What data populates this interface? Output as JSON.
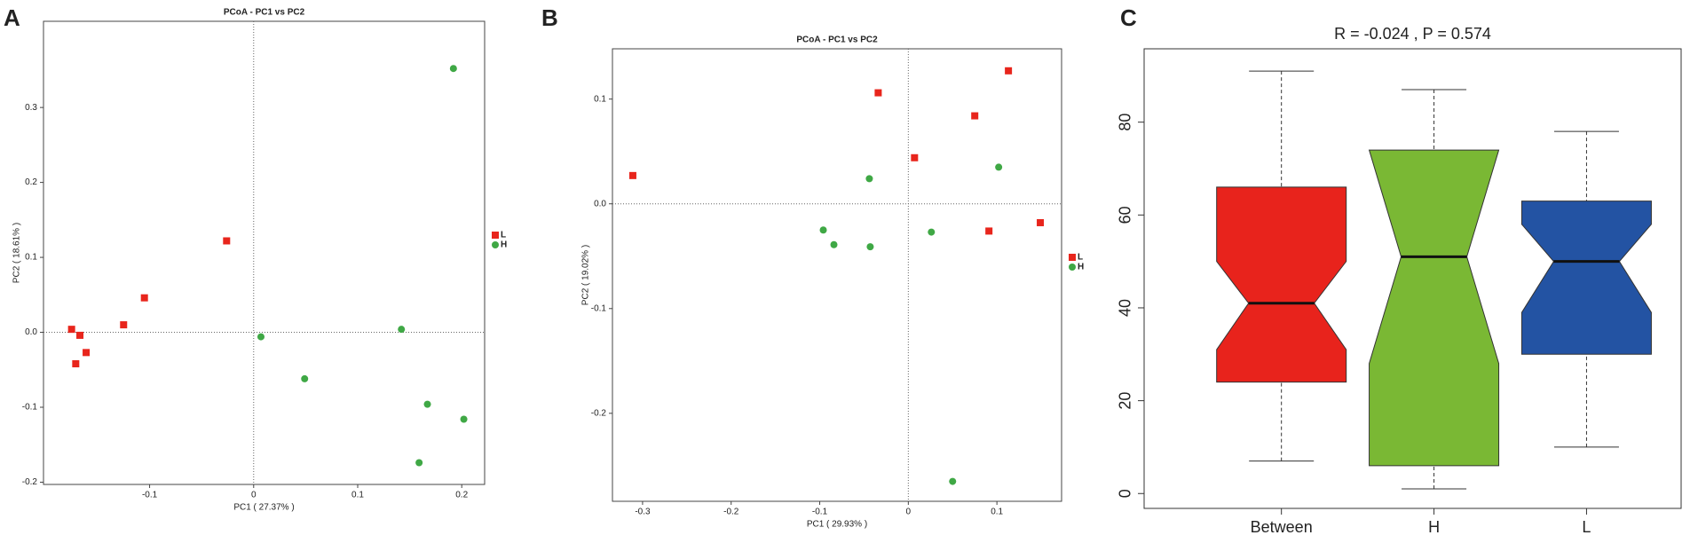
{
  "chart_data": [
    {
      "type": "scatter",
      "label": "A",
      "title": "PCoA - PC1 vs PC2",
      "x_label": "PC1 ( 27.37% )",
      "y_label": "PC2 ( 18.61% )",
      "xlim": [
        -0.202,
        0.222
      ],
      "ylim": [
        -0.203,
        0.415
      ],
      "xticks": [
        -0.1,
        0,
        0.1,
        0.2
      ],
      "yticks": [
        -0.2,
        -0.1,
        {
          "value": 0,
          "label": "0.0"
        },
        0.1,
        0.2,
        0.3
      ],
      "series": [
        {
          "name": "L",
          "color": "#e8251c",
          "marker": "square",
          "x": [
            -0.175,
            -0.167,
            -0.171,
            -0.161,
            -0.125,
            -0.105,
            -0.026
          ],
          "values": [
            0.004,
            -0.004,
            -0.042,
            -0.027,
            0.01,
            0.046,
            0.122
          ]
        },
        {
          "name": "H",
          "color": "#3fa845",
          "marker": "circle",
          "x": [
            0.192,
            0.142,
            0.007,
            0.049,
            0.167,
            0.202,
            0.159
          ],
          "values": [
            0.352,
            0.004,
            -0.006,
            -0.062,
            -0.096,
            -0.116,
            -0.174
          ]
        }
      ]
    },
    {
      "type": "scatter",
      "label": "B",
      "title": "PCoA - PC1 vs PC2",
      "x_label": "PC1 ( 29.93% )",
      "y_label": "PC2 ( 19.02% )",
      "xlim": [
        -0.334,
        0.173
      ],
      "ylim": [
        -0.284,
        0.148
      ],
      "xticks": [
        -0.3,
        -0.2,
        -0.1,
        0,
        0.1
      ],
      "yticks": [
        -0.2,
        -0.1,
        {
          "value": 0,
          "label": "0.0"
        },
        0.1
      ],
      "series": [
        {
          "name": "L",
          "color": "#e8251c",
          "marker": "square",
          "x": [
            -0.311,
            -0.034,
            0.007,
            0.075,
            0.113,
            0.091,
            0.149
          ],
          "values": [
            0.027,
            0.106,
            0.044,
            0.084,
            0.127,
            -0.026,
            -0.018
          ]
        },
        {
          "name": "H",
          "color": "#3fa845",
          "marker": "circle",
          "x": [
            -0.044,
            -0.096,
            -0.084,
            -0.043,
            0.026,
            0.102,
            0.05
          ],
          "values": [
            0.024,
            -0.025,
            -0.039,
            -0.041,
            -0.027,
            0.035,
            -0.265
          ]
        }
      ]
    },
    {
      "type": "box",
      "label": "C",
      "title": "R =  -0.024 ,  P =  0.574",
      "ylim": [
        -3.2,
        95.8
      ],
      "yticks": [
        0,
        20,
        40,
        60,
        80
      ],
      "categories": [
        "Between",
        "H",
        "L"
      ],
      "boxes": [
        {
          "color": "#e8231c",
          "low": 7,
          "q1": 24,
          "median": 41,
          "q3": 66,
          "high": 91,
          "notch_low": 31,
          "notch_high": 50
        },
        {
          "color": "#7ab834",
          "low": 1,
          "q1": 6,
          "median": 51,
          "q3": 74,
          "high": 87,
          "notch_low": 28,
          "notch_high": 74
        },
        {
          "color": "#2353a3",
          "low": 10,
          "q1": 30,
          "median": 50,
          "q3": 63,
          "high": 78,
          "notch_low": 39,
          "notch_high": 58
        }
      ]
    }
  ]
}
